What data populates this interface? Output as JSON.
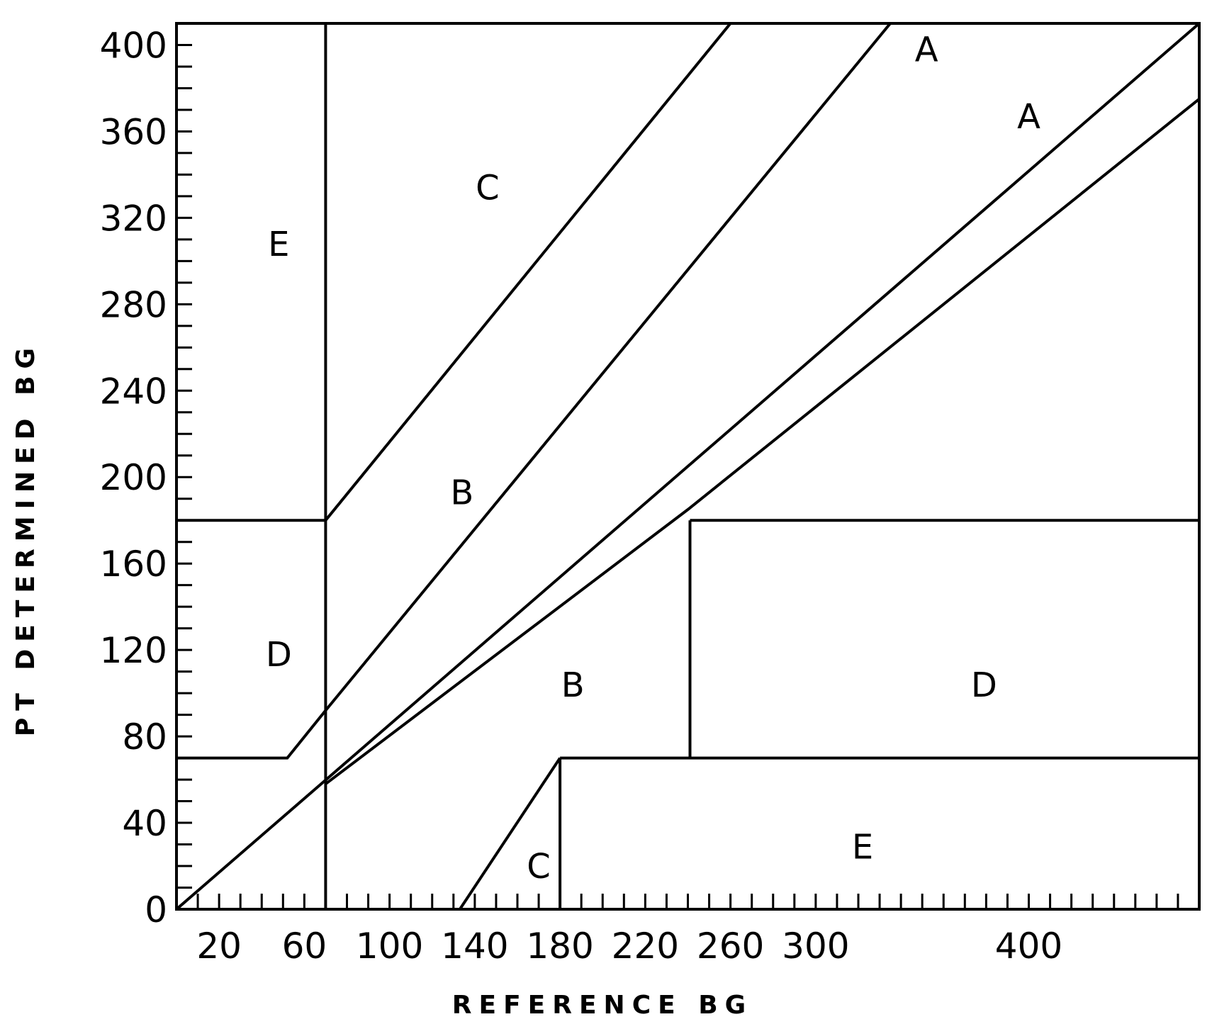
{
  "chart_data": {
    "type": "diagram",
    "xlabel": "REFERENCE BG",
    "ylabel": "PT DETERMINED BG",
    "xlim": [
      0,
      480
    ],
    "ylim": [
      0,
      410
    ],
    "x_ticks": [
      {
        "value": 20,
        "label": "20"
      },
      {
        "value": 60,
        "label": "60"
      },
      {
        "value": 100,
        "label": "100"
      },
      {
        "value": 140,
        "label": "140"
      },
      {
        "value": 180,
        "label": "180"
      },
      {
        "value": 220,
        "label": "220"
      },
      {
        "value": 260,
        "label": "260"
      },
      {
        "value": 300,
        "label": "300"
      },
      {
        "value": 400,
        "label": "400"
      }
    ],
    "y_ticks": [
      {
        "value": 0,
        "label": "0"
      },
      {
        "value": 40,
        "label": "40"
      },
      {
        "value": 80,
        "label": "80"
      },
      {
        "value": 120,
        "label": "120"
      },
      {
        "value": 160,
        "label": "160"
      },
      {
        "value": 200,
        "label": "200"
      },
      {
        "value": 240,
        "label": "240"
      },
      {
        "value": 280,
        "label": "280"
      },
      {
        "value": 320,
        "label": "320"
      },
      {
        "value": 360,
        "label": "360"
      },
      {
        "value": 400,
        "label": "400"
      }
    ],
    "boundaries": [
      {
        "name": "identity-line",
        "points": [
          [
            0,
            0
          ],
          [
            480,
            410
          ]
        ]
      },
      {
        "name": "upper-a-boundary",
        "points": [
          [
            70,
            92
          ],
          [
            335,
            410
          ]
        ]
      },
      {
        "name": "lower-a-boundary",
        "points": [
          [
            70,
            58
          ],
          [
            240,
            185
          ],
          [
            480,
            375
          ]
        ]
      },
      {
        "name": "upper-b-boundary",
        "points": [
          [
            70,
            180
          ],
          [
            260,
            410
          ]
        ]
      },
      {
        "name": "left-vertical",
        "points": [
          [
            70,
            0
          ],
          [
            70,
            410
          ]
        ]
      },
      {
        "name": "upper-e-floor",
        "points": [
          [
            0,
            180
          ],
          [
            70,
            180
          ]
        ]
      },
      {
        "name": "left-d-floor",
        "points": [
          [
            0,
            70
          ],
          [
            52,
            70
          ],
          [
            70,
            92
          ]
        ]
      },
      {
        "name": "lower-c-boundary",
        "points": [
          [
            133,
            0
          ],
          [
            180,
            70
          ]
        ]
      },
      {
        "name": "lower-e-left",
        "points": [
          [
            180,
            0
          ],
          [
            180,
            70
          ]
        ]
      },
      {
        "name": "lower-e-top",
        "points": [
          [
            180,
            70
          ],
          [
            480,
            70
          ]
        ]
      },
      {
        "name": "right-d-left",
        "points": [
          [
            241,
            70
          ],
          [
            241,
            180
          ]
        ]
      },
      {
        "name": "right-d-top",
        "points": [
          [
            241,
            180
          ],
          [
            480,
            180
          ]
        ]
      }
    ],
    "zones": [
      {
        "label": "A",
        "x": 352,
        "y": 398
      },
      {
        "label": "A",
        "x": 400,
        "y": 367
      },
      {
        "label": "B",
        "x": 134,
        "y": 193
      },
      {
        "label": "B",
        "x": 186,
        "y": 104
      },
      {
        "label": "C",
        "x": 146,
        "y": 334
      },
      {
        "label": "C",
        "x": 170,
        "y": 20
      },
      {
        "label": "D",
        "x": 48,
        "y": 118
      },
      {
        "label": "D",
        "x": 379,
        "y": 104
      },
      {
        "label": "E",
        "x": 48,
        "y": 308
      },
      {
        "label": "E",
        "x": 322,
        "y": 29
      }
    ]
  }
}
